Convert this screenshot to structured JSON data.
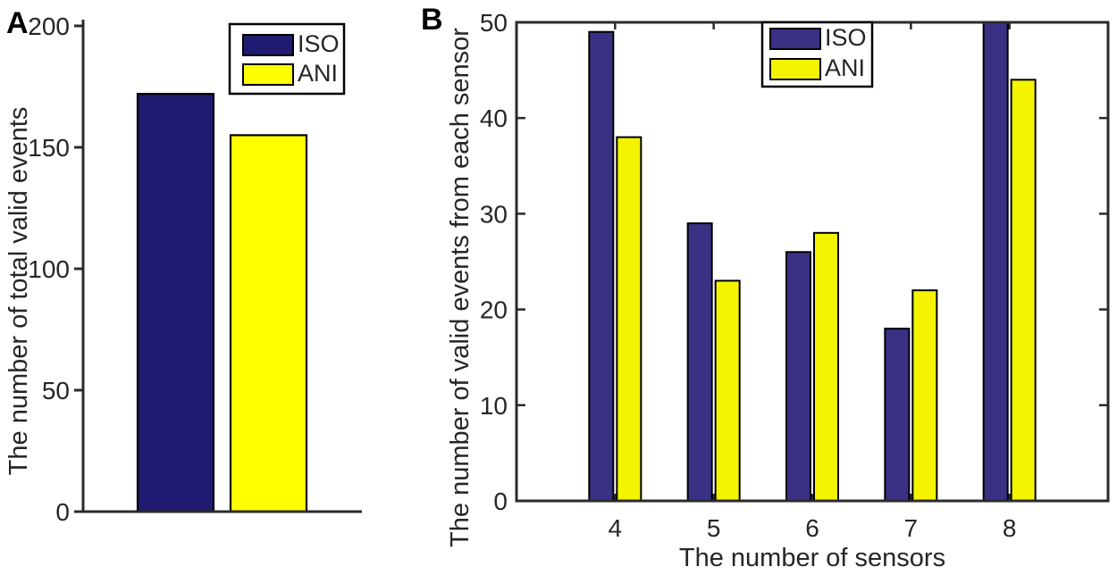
{
  "figure": {
    "panels": [
      {
        "letter": "A"
      },
      {
        "letter": "B"
      }
    ]
  },
  "chart_data": [
    {
      "id": "A",
      "type": "bar",
      "title": "",
      "xlabel": "",
      "ylabel": "The number of total valid events",
      "categories": [
        ""
      ],
      "series": [
        {
          "name": "ISO",
          "values": [
            172
          ],
          "color": "#1e1b70",
          "edge": "#000000"
        },
        {
          "name": "ANI",
          "values": [
            155
          ],
          "color": "#ffff00",
          "edge": "#000000"
        }
      ],
      "ylim": [
        0,
        200
      ],
      "yticks": [
        0,
        50,
        100,
        150,
        200
      ],
      "grid": false,
      "box": false,
      "tick_dir": "out",
      "legend_position": "top-right",
      "legend_labels": [
        "ISO",
        "ANI"
      ]
    },
    {
      "id": "B",
      "type": "bar",
      "title": "",
      "xlabel": "The number of sensors",
      "ylabel": "The number of valid events from each sensor",
      "categories": [
        "4",
        "5",
        "6",
        "7",
        "8"
      ],
      "series": [
        {
          "name": "ISO",
          "values": [
            49,
            29,
            26,
            18,
            50
          ],
          "color": "#3a3185",
          "edge": "#000000"
        },
        {
          "name": "ANI",
          "values": [
            38,
            23,
            28,
            22,
            44
          ],
          "color": "#f4f400",
          "edge": "#000000"
        }
      ],
      "ylim": [
        0,
        50
      ],
      "yticks": [
        0,
        10,
        20,
        30,
        40,
        50
      ],
      "xlim": [
        3,
        9
      ],
      "grid": false,
      "box": true,
      "tick_dir": "in",
      "legend_position": "top-left",
      "legend_labels": [
        "ISO",
        "ANI"
      ]
    }
  ],
  "style_colors": {
    "axis": "#2b2b2b",
    "text": "#262626",
    "legend_border": "#000000",
    "legend_bg": "#ffffff"
  }
}
